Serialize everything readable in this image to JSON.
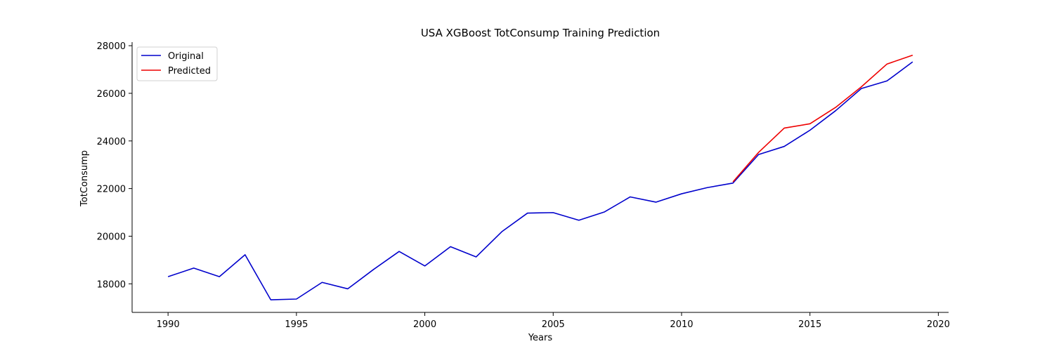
{
  "chart_data": {
    "type": "line",
    "title": "USA XGBoost TotConsump Training Prediction",
    "xlabel": "Years",
    "ylabel": "TotConsump",
    "xlim": [
      1988.6,
      2020.4
    ],
    "ylim": [
      16800,
      28150
    ],
    "xticks": [
      1990,
      1995,
      2000,
      2005,
      2010,
      2015,
      2020
    ],
    "yticks": [
      18000,
      20000,
      22000,
      24000,
      26000,
      28000
    ],
    "legend": "top-left",
    "grid": false,
    "series": [
      {
        "name": "Original",
        "color": "#0000cc",
        "x": [
          1990,
          1991,
          1992,
          1993,
          1994,
          1995,
          1996,
          1997,
          1998,
          1999,
          2000,
          2001,
          2002,
          2003,
          2004,
          2005,
          2006,
          2007,
          2008,
          2009,
          2010,
          2011,
          2012,
          2013,
          2014,
          2015,
          2016,
          2017,
          2018,
          2019
        ],
        "y": [
          18300,
          18660,
          18300,
          19220,
          17330,
          17360,
          18060,
          17790,
          18600,
          19360,
          18750,
          19560,
          19130,
          20190,
          20970,
          20990,
          20670,
          21020,
          21650,
          21430,
          21780,
          22040,
          22230,
          23430,
          23770,
          24450,
          25270,
          26200,
          26520,
          27320
        ]
      },
      {
        "name": "Predicted",
        "color": "#ee0000",
        "x": [
          2012,
          2013,
          2014,
          2015,
          2016,
          2017,
          2018,
          2019
        ],
        "y": [
          22280,
          23520,
          24540,
          24720,
          25410,
          26270,
          27230,
          27600
        ]
      }
    ]
  }
}
